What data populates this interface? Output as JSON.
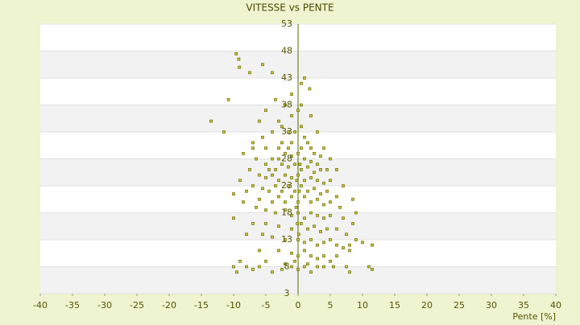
{
  "chart_data": {
    "type": "scatter",
    "title": "VITESSE vs PENTE",
    "x_label": "Pente [%]",
    "xlim": [
      -40,
      40
    ],
    "ylim": [
      3,
      53
    ],
    "xticks": [
      -40,
      -35,
      -30,
      -25,
      -20,
      -15,
      -10,
      -5,
      0,
      5,
      10,
      15,
      20,
      25,
      30,
      35,
      40
    ],
    "yticks": [
      53,
      48,
      43,
      38,
      33,
      28,
      23,
      18,
      13,
      8,
      3
    ],
    "grid": true,
    "series": [
      {
        "color": "#6b6b00",
        "x": [
          -9.6,
          -9.2,
          -9.1,
          -5.5,
          -7.5,
          -4,
          1,
          0.5,
          1.8,
          -10.8,
          -13.5,
          -11.5,
          -3.5,
          -5,
          -2,
          0,
          -1,
          -6,
          -2.5,
          -4,
          -1.5,
          0.5,
          1,
          -7,
          -5,
          -3,
          -1,
          0.5,
          2,
          -8.5,
          -4,
          -3,
          -2,
          -1,
          0,
          1,
          2,
          3,
          -5,
          -4.5,
          -3.5,
          -2.5,
          -1.5,
          -0.5,
          0.5,
          1.5,
          2.5,
          3.5,
          4.5,
          -6,
          -5,
          -4,
          -3,
          -2,
          -1,
          0,
          1,
          2,
          3,
          4,
          5,
          -7,
          -5.5,
          -4.5,
          -3.5,
          -2.5,
          -1.5,
          -0.5,
          0.5,
          1.5,
          2.5,
          3.5,
          4.5,
          6,
          -8,
          -6,
          -4,
          -3,
          -2,
          -1,
          0,
          1,
          2,
          3,
          4,
          5,
          6.5,
          -6.5,
          -5,
          -3.5,
          -2,
          -1,
          0,
          1,
          2,
          3,
          4,
          5,
          7,
          8.5,
          -10,
          -7,
          -5,
          -3,
          -1,
          0.5,
          1.5,
          2.5,
          3.5,
          4.5,
          6,
          7.5,
          9,
          -8,
          -4,
          -2,
          0,
          1,
          2,
          3,
          4,
          5,
          6,
          7,
          8,
          11.5,
          -6,
          -3,
          -1,
          0,
          1,
          2,
          3,
          4,
          5,
          6,
          8,
          10,
          -5,
          -2,
          -0.5,
          1.5,
          3,
          5.5,
          7.5,
          8,
          11,
          11.5,
          -10,
          -9.5,
          -8,
          -7,
          -6,
          -4,
          -2.5,
          -1,
          0,
          1,
          2,
          4,
          -9,
          -5.5,
          -8.5,
          -10,
          -9,
          -7.5,
          -6.5,
          -5.5,
          -3,
          -7,
          -1,
          0.5,
          2,
          3,
          4,
          5,
          6,
          7,
          8.5,
          9,
          -2.5,
          -1.5,
          -0.5,
          1.5,
          2.5,
          3.5,
          -0.2,
          0.2,
          -0.3,
          0.3,
          -0.1,
          0.1
        ],
        "values": [
          47.5,
          46.5,
          45,
          45.5,
          44,
          44,
          43,
          42,
          41,
          39,
          35,
          33,
          39,
          37,
          38,
          37,
          36,
          35,
          34,
          33,
          33,
          34,
          32,
          31,
          30,
          30,
          31,
          30,
          30,
          29,
          28,
          28,
          29,
          28.5,
          29,
          28,
          27.5,
          27,
          27,
          26,
          26,
          27,
          26.5,
          27,
          26,
          26.5,
          25.5,
          26,
          26,
          25,
          24.5,
          25,
          24,
          25,
          24.5,
          25,
          24,
          24.5,
          24,
          23.5,
          24,
          23,
          22.5,
          22,
          23,
          22,
          23,
          22,
          23,
          22,
          22.5,
          21.5,
          22,
          21,
          22,
          20.5,
          20,
          21,
          20,
          21,
          20,
          21,
          20,
          20.5,
          19.5,
          20,
          19,
          19,
          18.5,
          18,
          18.5,
          17.5,
          18,
          17,
          18,
          17.5,
          17,
          17.5,
          17,
          16,
          17,
          16,
          16,
          15.5,
          15,
          16,
          15,
          15.5,
          14.5,
          15,
          15,
          14,
          13,
          14,
          13.5,
          13,
          13,
          12.5,
          13,
          12,
          12.5,
          13,
          12,
          11.5,
          12,
          12,
          11,
          11,
          10.5,
          10,
          11,
          10,
          9.5,
          10,
          9,
          10,
          11,
          12.5,
          9,
          8.5,
          9,
          8.5,
          8,
          8,
          8,
          7,
          8,
          7.5,
          8,
          7,
          8,
          7.5,
          8,
          7,
          7.5,
          8,
          7.5,
          8,
          7,
          8,
          9,
          14,
          20,
          21.5,
          24,
          26,
          28,
          32,
          35,
          30,
          40,
          38,
          36,
          33,
          30,
          28,
          26,
          23,
          20.5,
          18,
          31,
          30,
          33,
          31,
          29,
          28.5,
          24,
          22,
          19,
          27,
          16,
          14
        ]
      }
    ]
  }
}
